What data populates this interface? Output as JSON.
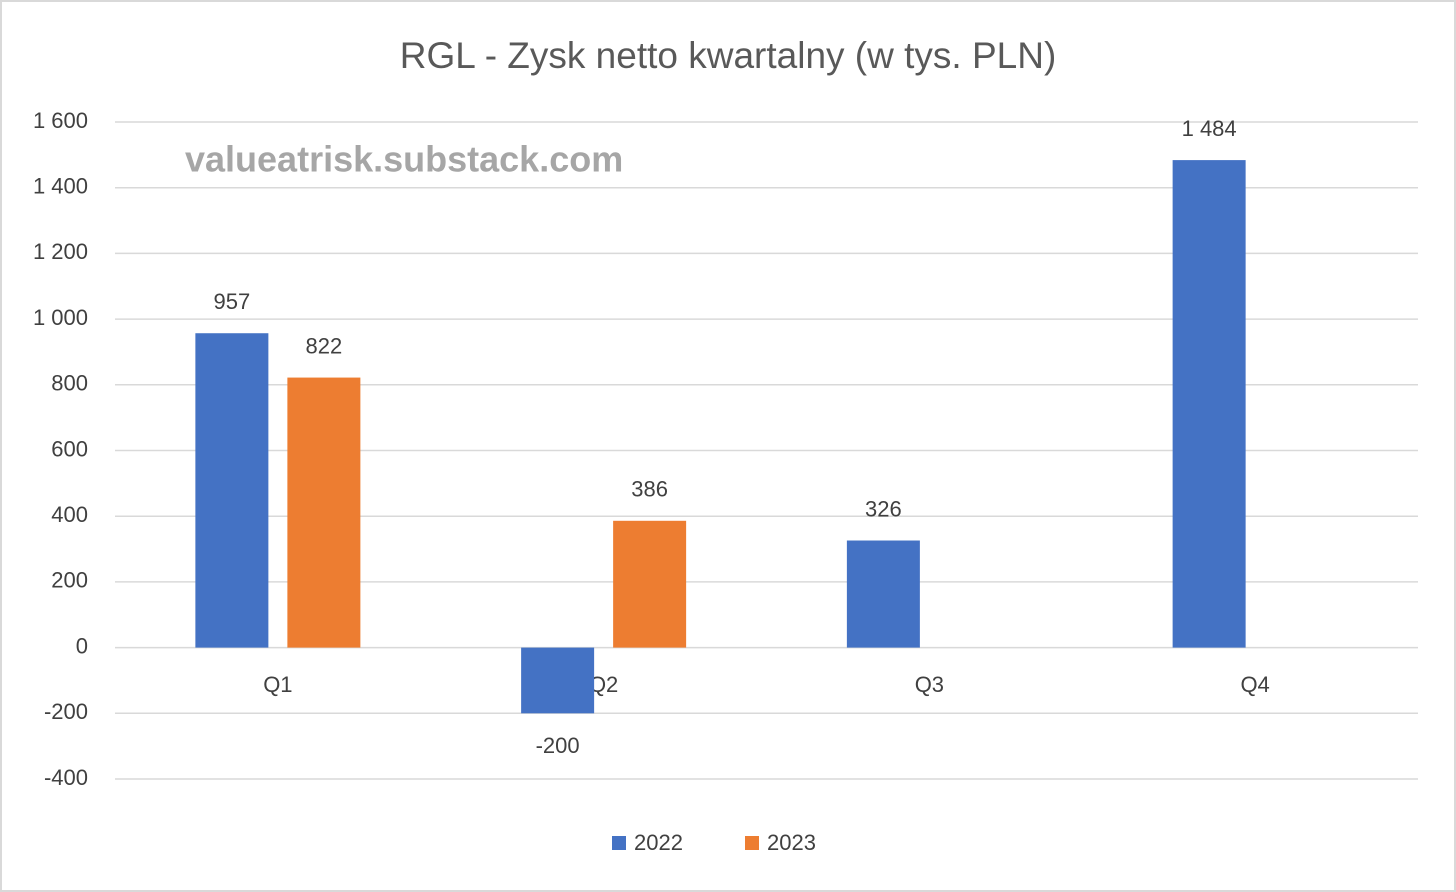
{
  "chart_data": {
    "type": "bar",
    "title": "RGL - Zysk netto kwartalny (w tys. PLN)",
    "watermark": "valueatrisk.substack.com",
    "categories": [
      "Q1",
      "Q2",
      "Q3",
      "Q4"
    ],
    "series": [
      {
        "name": "2022",
        "color": "#4472c4",
        "values": [
          957,
          -200,
          326,
          1484
        ],
        "value_labels": [
          "957",
          "-200",
          "326",
          "1 484"
        ]
      },
      {
        "name": "2023",
        "color": "#ed7d31",
        "values": [
          822,
          386,
          null,
          null
        ],
        "value_labels": [
          "822",
          "386",
          null,
          null
        ]
      }
    ],
    "ylim": [
      -400,
      1600
    ],
    "yticks": [
      -400,
      -200,
      0,
      200,
      400,
      600,
      800,
      {
        "value": 1000,
        "label": "1 000"
      },
      {
        "value": 1200,
        "label": "1 200"
      },
      {
        "value": 1400,
        "label": "1 400"
      },
      {
        "value": 1600,
        "label": "1 600"
      }
    ],
    "grid": true,
    "legend": "bottom"
  }
}
